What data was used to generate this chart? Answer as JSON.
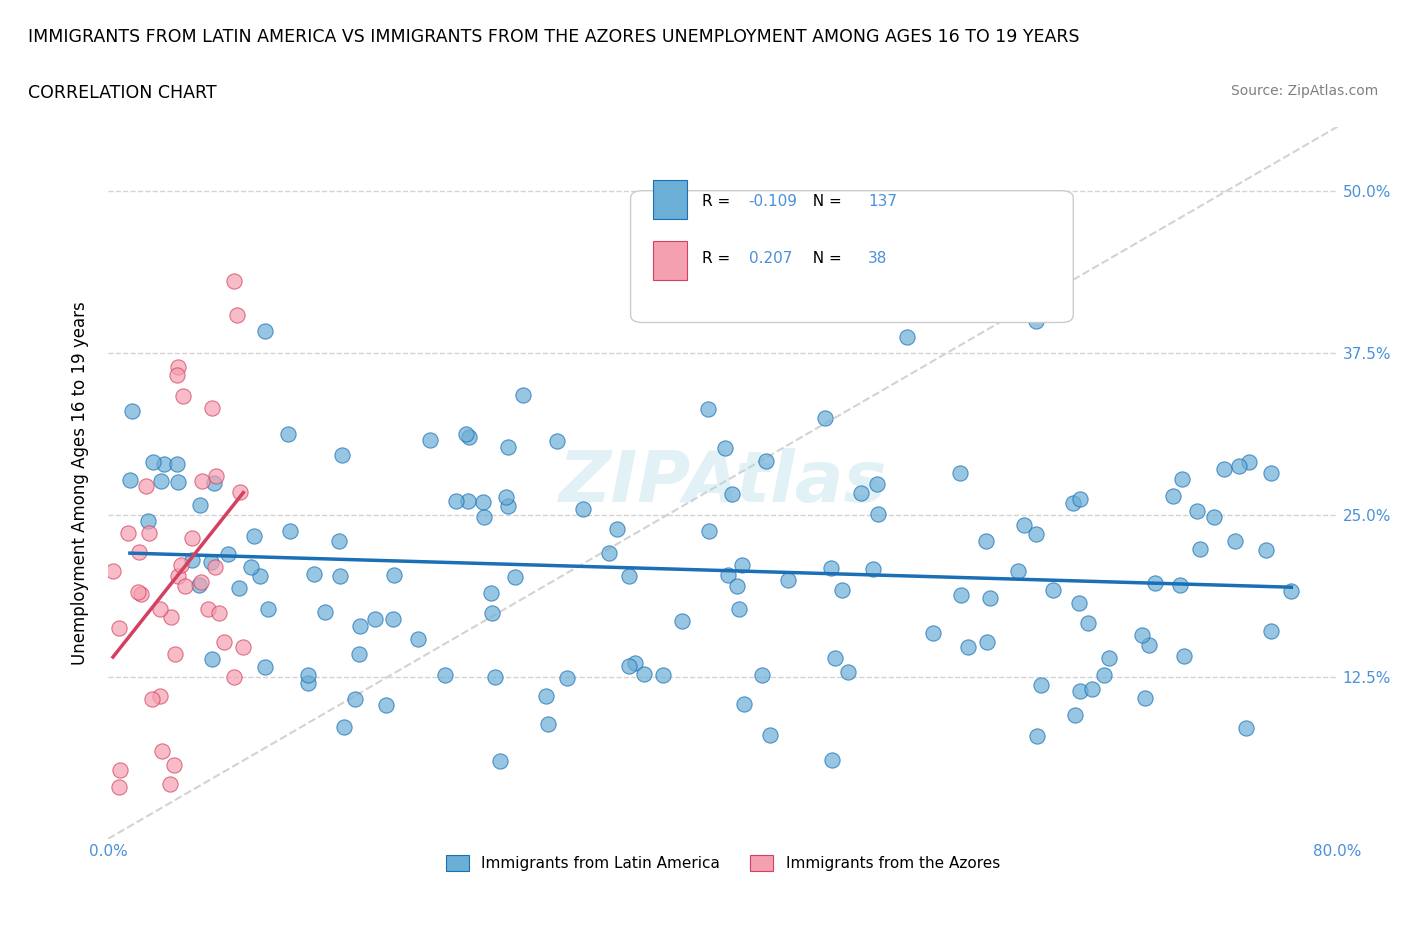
{
  "title_line1": "IMMIGRANTS FROM LATIN AMERICA VS IMMIGRANTS FROM THE AZORES UNEMPLOYMENT AMONG AGES 16 TO 19 YEARS",
  "title_line2": "CORRELATION CHART",
  "source_text": "Source: ZipAtlas.com",
  "ylabel": "Unemployment Among Ages 16 to 19 years",
  "xlim": [
    0.0,
    0.8
  ],
  "ylim": [
    0.0,
    0.55
  ],
  "r_blue": -0.109,
  "n_blue": 137,
  "r_pink": 0.207,
  "n_pink": 38,
  "color_blue": "#6baed6",
  "color_pink": "#f4a0b0",
  "legend_label_blue": "Immigrants from Latin America",
  "legend_label_pink": "Immigrants from the Azores",
  "trendline_blue_color": "#1a6fb5",
  "trendline_pink_color": "#d44060",
  "watermark_text": "ZIPAtlas"
}
